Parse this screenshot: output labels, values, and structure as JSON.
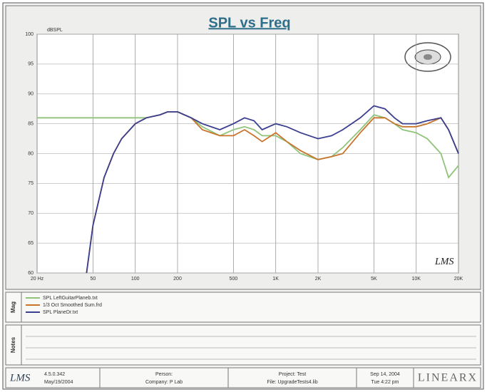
{
  "chart_data": {
    "type": "line",
    "title": "SPL vs Freq",
    "y_label": "dBSPL",
    "x": [
      20,
      30,
      40,
      45,
      50,
      60,
      70,
      80,
      100,
      120,
      150,
      170,
      200,
      250,
      300,
      400,
      500,
      600,
      700,
      800,
      1000,
      1200,
      1500,
      2000,
      2500,
      3000,
      4000,
      5000,
      6000,
      7000,
      8000,
      10000,
      12000,
      15000,
      17000,
      20000
    ],
    "series": [
      {
        "name": "SPL LeftGuitarPlaneb.txt",
        "color": "#8fc47a",
        "values": [
          86,
          86,
          86,
          86,
          86,
          86,
          86,
          86,
          86,
          86,
          86.5,
          87,
          87,
          86,
          84.5,
          83,
          84,
          84.5,
          84,
          83,
          83,
          82,
          80,
          79,
          79.5,
          81,
          84,
          86.5,
          86,
          85,
          84,
          83.5,
          82.5,
          80,
          76,
          78
        ]
      },
      {
        "name": "1/3 Oct Smoothed Sum.frd",
        "color": "#c8742c",
        "values": [
          null,
          null,
          null,
          60,
          68,
          76,
          80,
          82.5,
          85,
          86,
          86.5,
          87,
          87,
          86,
          84,
          83,
          83,
          84,
          83,
          82,
          83.5,
          82,
          80.5,
          79,
          79.5,
          80,
          83.5,
          86,
          86,
          85,
          84.5,
          84.5,
          85,
          86,
          84,
          80
        ]
      },
      {
        "name": "SPL PlaneDr.txt",
        "color": "#3b3f8f",
        "values": [
          null,
          null,
          null,
          60,
          68,
          76,
          80,
          82.5,
          85,
          86,
          86.5,
          87,
          87,
          86,
          85,
          84,
          85,
          86,
          85.5,
          84,
          85,
          84.5,
          83.5,
          82.5,
          83,
          84,
          86,
          88,
          87.5,
          86,
          85,
          85,
          85.5,
          86,
          84,
          80
        ]
      }
    ],
    "xlim": [
      20,
      20000
    ],
    "ylim": [
      60,
      100
    ],
    "log_x": true,
    "grid": true,
    "xticks": [
      {
        "value": 20,
        "label": "20 Hz"
      },
      50,
      100,
      200,
      500,
      {
        "value": 1000,
        "label": "1K"
      },
      {
        "value": 2000,
        "label": "2K"
      },
      {
        "value": 5000,
        "label": "5K"
      },
      {
        "value": 10000,
        "label": "10K"
      },
      {
        "value": 20000,
        "label": "20K"
      }
    ],
    "yticks": [
      60,
      65,
      70,
      75,
      80,
      85,
      90,
      95,
      100
    ],
    "watermark": "LMS"
  },
  "panels": {
    "mag": "Mag",
    "notes": "Notes"
  },
  "footer": {
    "logo": "LMS",
    "version": "4.5.0.342",
    "date": "May/19/2004",
    "person": "Person:",
    "company": "Company: P Lab",
    "project": "Project: Test",
    "file": "File: UpgradeTests4.lib",
    "run_date": "Sep 14, 2004",
    "run_time": "Tue 4:22 pm",
    "brand": "LINEARX"
  }
}
